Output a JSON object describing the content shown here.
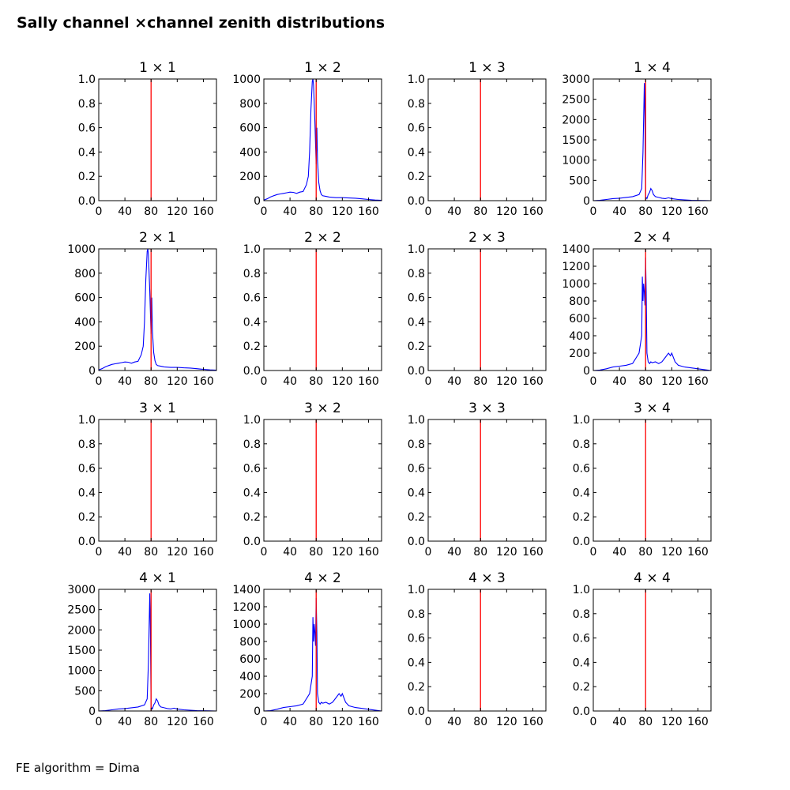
{
  "figure": {
    "title": "Sally channel ×channel zenith distributions",
    "footnote": "FE algorithm = Dima"
  },
  "chart_data": [
    {
      "type": "line",
      "title": "1 × 1",
      "xlim": [
        0,
        180
      ],
      "ylim": [
        0,
        1
      ],
      "xticks": [
        0,
        40,
        80,
        120,
        160
      ],
      "yticks": [
        0.0,
        0.2,
        0.4,
        0.6,
        0.8,
        1.0
      ],
      "ytick_labels": [
        "0.0",
        "0.2",
        "0.4",
        "0.6",
        "0.8",
        "1.0"
      ],
      "vline": {
        "x": 80,
        "color": "#ff0000"
      },
      "series": []
    },
    {
      "type": "line",
      "title": "1 × 2",
      "xlim": [
        0,
        180
      ],
      "ylim": [
        0,
        1000
      ],
      "xticks": [
        0,
        40,
        80,
        120,
        160
      ],
      "yticks": [
        0,
        200,
        400,
        600,
        800,
        1000
      ],
      "ytick_labels": [
        "0",
        "200",
        "400",
        "600",
        "800",
        "1000"
      ],
      "vline": {
        "x": 80,
        "color": "#ff0000"
      },
      "series": [
        {
          "color": "#0000ff",
          "x": [
            0,
            5,
            10,
            15,
            20,
            25,
            30,
            35,
            40,
            45,
            50,
            55,
            60,
            65,
            68,
            70,
            72,
            74,
            75,
            76,
            78,
            80,
            81,
            82,
            84,
            86,
            88,
            90,
            95,
            100,
            110,
            120,
            130,
            140,
            150,
            160,
            170,
            180
          ],
          "y": [
            5,
            15,
            30,
            40,
            50,
            55,
            60,
            65,
            70,
            68,
            60,
            70,
            75,
            130,
            200,
            400,
            750,
            980,
            1000,
            950,
            650,
            300,
            600,
            330,
            150,
            80,
            50,
            40,
            35,
            30,
            25,
            25,
            22,
            20,
            15,
            10,
            5,
            3
          ]
        }
      ]
    },
    {
      "type": "line",
      "title": "1 × 3",
      "xlim": [
        0,
        180
      ],
      "ylim": [
        0,
        1
      ],
      "xticks": [
        0,
        40,
        80,
        120,
        160
      ],
      "yticks": [
        0.0,
        0.2,
        0.4,
        0.6,
        0.8,
        1.0
      ],
      "ytick_labels": [
        "0.0",
        "0.2",
        "0.4",
        "0.6",
        "0.8",
        "1.0"
      ],
      "vline": {
        "x": 80,
        "color": "#ff0000"
      },
      "series": []
    },
    {
      "type": "line",
      "title": "1 × 4",
      "xlim": [
        0,
        180
      ],
      "ylim": [
        0,
        3000
      ],
      "xticks": [
        0,
        40,
        80,
        120,
        160
      ],
      "yticks": [
        0,
        500,
        1000,
        1500,
        2000,
        2500,
        3000
      ],
      "ytick_labels": [
        "0",
        "500",
        "1000",
        "1500",
        "2000",
        "2500",
        "3000"
      ],
      "vline": {
        "x": 80,
        "color": "#ff0000"
      },
      "series": [
        {
          "color": "#0000ff",
          "x": [
            0,
            10,
            20,
            30,
            40,
            50,
            60,
            70,
            74,
            76,
            77,
            78,
            79,
            80,
            82,
            84,
            86,
            88,
            90,
            92,
            95,
            100,
            105,
            110,
            115,
            120,
            130,
            140,
            150,
            160,
            170,
            180
          ],
          "y": [
            0,
            10,
            30,
            50,
            60,
            80,
            100,
            150,
            300,
            1200,
            2000,
            2900,
            2000,
            100,
            50,
            150,
            200,
            300,
            250,
            150,
            100,
            80,
            60,
            50,
            70,
            50,
            30,
            20,
            10,
            5,
            3,
            0
          ]
        }
      ]
    },
    {
      "type": "line",
      "title": "2 × 1",
      "xlim": [
        0,
        180
      ],
      "ylim": [
        0,
        1000
      ],
      "xticks": [
        0,
        40,
        80,
        120,
        160
      ],
      "yticks": [
        0,
        200,
        400,
        600,
        800,
        1000
      ],
      "ytick_labels": [
        "0",
        "200",
        "400",
        "600",
        "800",
        "1000"
      ],
      "vline": {
        "x": 80,
        "color": "#ff0000"
      },
      "series": [
        {
          "color": "#0000ff",
          "x": [
            0,
            5,
            10,
            15,
            20,
            25,
            30,
            35,
            40,
            45,
            50,
            55,
            60,
            65,
            68,
            70,
            72,
            74,
            75,
            76,
            78,
            80,
            81,
            82,
            84,
            86,
            88,
            90,
            95,
            100,
            110,
            120,
            130,
            140,
            150,
            160,
            170,
            180
          ],
          "y": [
            5,
            15,
            30,
            40,
            50,
            55,
            60,
            65,
            70,
            68,
            60,
            70,
            75,
            130,
            200,
            400,
            750,
            980,
            1000,
            950,
            650,
            300,
            600,
            330,
            150,
            80,
            50,
            40,
            35,
            30,
            25,
            25,
            22,
            20,
            15,
            10,
            5,
            3
          ]
        }
      ]
    },
    {
      "type": "line",
      "title": "2 × 2",
      "xlim": [
        0,
        180
      ],
      "ylim": [
        0,
        1
      ],
      "xticks": [
        0,
        40,
        80,
        120,
        160
      ],
      "yticks": [
        0.0,
        0.2,
        0.4,
        0.6,
        0.8,
        1.0
      ],
      "ytick_labels": [
        "0.0",
        "0.2",
        "0.4",
        "0.6",
        "0.8",
        "1.0"
      ],
      "vline": {
        "x": 80,
        "color": "#ff0000"
      },
      "series": []
    },
    {
      "type": "line",
      "title": "2 × 3",
      "xlim": [
        0,
        180
      ],
      "ylim": [
        0,
        1
      ],
      "xticks": [
        0,
        40,
        80,
        120,
        160
      ],
      "yticks": [
        0.0,
        0.2,
        0.4,
        0.6,
        0.8,
        1.0
      ],
      "ytick_labels": [
        "0.0",
        "0.2",
        "0.4",
        "0.6",
        "0.8",
        "1.0"
      ],
      "vline": {
        "x": 80,
        "color": "#ff0000"
      },
      "series": []
    },
    {
      "type": "line",
      "title": "2 × 4",
      "xlim": [
        0,
        180
      ],
      "ylim": [
        0,
        1400
      ],
      "xticks": [
        0,
        40,
        80,
        120,
        160
      ],
      "yticks": [
        0,
        200,
        400,
        600,
        800,
        1000,
        1200,
        1400
      ],
      "ytick_labels": [
        "0",
        "200",
        "400",
        "600",
        "800",
        "1000",
        "1200",
        "1400"
      ],
      "vline": {
        "x": 80,
        "color": "#ff0000"
      },
      "series": [
        {
          "color": "#0000ff",
          "x": [
            0,
            10,
            20,
            30,
            40,
            50,
            60,
            70,
            74,
            75,
            76,
            77,
            78,
            79,
            80,
            81,
            82,
            84,
            86,
            88,
            90,
            95,
            100,
            105,
            110,
            115,
            118,
            120,
            125,
            130,
            140,
            150,
            160,
            170,
            180
          ],
          "y": [
            0,
            5,
            20,
            40,
            50,
            60,
            80,
            200,
            400,
            1080,
            800,
            1000,
            900,
            750,
            1300,
            900,
            200,
            100,
            80,
            100,
            90,
            100,
            80,
            100,
            150,
            200,
            170,
            200,
            100,
            60,
            40,
            30,
            20,
            10,
            0
          ]
        }
      ]
    },
    {
      "type": "line",
      "title": "3 × 1",
      "xlim": [
        0,
        180
      ],
      "ylim": [
        0,
        1
      ],
      "xticks": [
        0,
        40,
        80,
        120,
        160
      ],
      "yticks": [
        0.0,
        0.2,
        0.4,
        0.6,
        0.8,
        1.0
      ],
      "ytick_labels": [
        "0.0",
        "0.2",
        "0.4",
        "0.6",
        "0.8",
        "1.0"
      ],
      "vline": {
        "x": 80,
        "color": "#ff0000"
      },
      "series": []
    },
    {
      "type": "line",
      "title": "3 × 2",
      "xlim": [
        0,
        180
      ],
      "ylim": [
        0,
        1
      ],
      "xticks": [
        0,
        40,
        80,
        120,
        160
      ],
      "yticks": [
        0.0,
        0.2,
        0.4,
        0.6,
        0.8,
        1.0
      ],
      "ytick_labels": [
        "0.0",
        "0.2",
        "0.4",
        "0.6",
        "0.8",
        "1.0"
      ],
      "vline": {
        "x": 80,
        "color": "#ff0000"
      },
      "series": []
    },
    {
      "type": "line",
      "title": "3 × 3",
      "xlim": [
        0,
        180
      ],
      "ylim": [
        0,
        1
      ],
      "xticks": [
        0,
        40,
        80,
        120,
        160
      ],
      "yticks": [
        0.0,
        0.2,
        0.4,
        0.6,
        0.8,
        1.0
      ],
      "ytick_labels": [
        "0.0",
        "0.2",
        "0.4",
        "0.6",
        "0.8",
        "1.0"
      ],
      "vline": {
        "x": 80,
        "color": "#ff0000"
      },
      "series": []
    },
    {
      "type": "line",
      "title": "3 × 4",
      "xlim": [
        0,
        180
      ],
      "ylim": [
        0,
        1
      ],
      "xticks": [
        0,
        40,
        80,
        120,
        160
      ],
      "yticks": [
        0.0,
        0.2,
        0.4,
        0.6,
        0.8,
        1.0
      ],
      "ytick_labels": [
        "0.0",
        "0.2",
        "0.4",
        "0.6",
        "0.8",
        "1.0"
      ],
      "vline": {
        "x": 80,
        "color": "#ff0000"
      },
      "series": []
    },
    {
      "type": "line",
      "title": "4 × 1",
      "xlim": [
        0,
        180
      ],
      "ylim": [
        0,
        3000
      ],
      "xticks": [
        0,
        40,
        80,
        120,
        160
      ],
      "yticks": [
        0,
        500,
        1000,
        1500,
        2000,
        2500,
        3000
      ],
      "ytick_labels": [
        "0",
        "500",
        "1000",
        "1500",
        "2000",
        "2500",
        "3000"
      ],
      "vline": {
        "x": 80,
        "color": "#ff0000"
      },
      "series": [
        {
          "color": "#0000ff",
          "x": [
            0,
            10,
            20,
            30,
            40,
            50,
            60,
            70,
            74,
            76,
            77,
            78,
            79,
            80,
            82,
            84,
            86,
            88,
            90,
            92,
            95,
            100,
            105,
            110,
            115,
            120,
            130,
            140,
            150,
            160,
            170,
            180
          ],
          "y": [
            0,
            10,
            30,
            50,
            60,
            80,
            100,
            150,
            300,
            1200,
            2000,
            2900,
            2000,
            100,
            50,
            150,
            200,
            300,
            250,
            150,
            100,
            80,
            60,
            50,
            70,
            50,
            30,
            20,
            10,
            5,
            3,
            0
          ]
        }
      ]
    },
    {
      "type": "line",
      "title": "4 × 2",
      "xlim": [
        0,
        180
      ],
      "ylim": [
        0,
        1400
      ],
      "xticks": [
        0,
        40,
        80,
        120,
        160
      ],
      "yticks": [
        0,
        200,
        400,
        600,
        800,
        1000,
        1200,
        1400
      ],
      "ytick_labels": [
        "0",
        "200",
        "400",
        "600",
        "800",
        "1000",
        "1200",
        "1400"
      ],
      "vline": {
        "x": 80,
        "color": "#ff0000"
      },
      "series": [
        {
          "color": "#0000ff",
          "x": [
            0,
            10,
            20,
            30,
            40,
            50,
            60,
            70,
            74,
            75,
            76,
            77,
            78,
            79,
            80,
            81,
            82,
            84,
            86,
            88,
            90,
            95,
            100,
            105,
            110,
            115,
            118,
            120,
            125,
            130,
            140,
            150,
            160,
            170,
            180
          ],
          "y": [
            0,
            5,
            20,
            40,
            50,
            60,
            80,
            200,
            400,
            1080,
            800,
            1000,
            900,
            750,
            1300,
            900,
            200,
            100,
            80,
            100,
            90,
            100,
            80,
            100,
            150,
            200,
            170,
            200,
            100,
            60,
            40,
            30,
            20,
            10,
            0
          ]
        }
      ]
    },
    {
      "type": "line",
      "title": "4 × 3",
      "xlim": [
        0,
        180
      ],
      "ylim": [
        0,
        1
      ],
      "xticks": [
        0,
        40,
        80,
        120,
        160
      ],
      "yticks": [
        0.0,
        0.2,
        0.4,
        0.6,
        0.8,
        1.0
      ],
      "ytick_labels": [
        "0.0",
        "0.2",
        "0.4",
        "0.6",
        "0.8",
        "1.0"
      ],
      "vline": {
        "x": 80,
        "color": "#ff0000"
      },
      "series": []
    },
    {
      "type": "line",
      "title": "4 × 4",
      "xlim": [
        0,
        180
      ],
      "ylim": [
        0,
        1
      ],
      "xticks": [
        0,
        40,
        80,
        120,
        160
      ],
      "yticks": [
        0.0,
        0.2,
        0.4,
        0.6,
        0.8,
        1.0
      ],
      "ytick_labels": [
        "0.0",
        "0.2",
        "0.4",
        "0.6",
        "0.8",
        "1.0"
      ],
      "vline": {
        "x": 80,
        "color": "#ff0000"
      },
      "series": []
    }
  ]
}
